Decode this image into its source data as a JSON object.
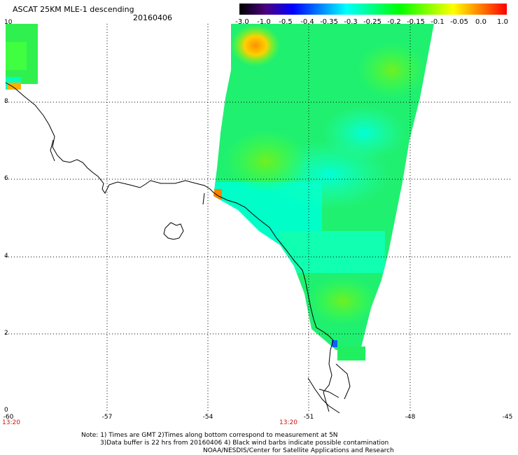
{
  "header": {
    "title": "ASCAT 25KM MLE-1 descending",
    "date": "20160406"
  },
  "colorbar": {
    "labels": [
      "-3.0",
      "-1.0",
      "-0.5",
      "-0.4",
      "-0.35",
      "-0.3",
      "-0.25",
      "-0.2",
      "-0.15",
      "-0.1",
      "-0.05",
      "0.0",
      "1.0"
    ],
    "colors": [
      "#000000",
      "#4b0082",
      "#0000ff",
      "#0080ff",
      "#00ffff",
      "#00ff80",
      "#00ff00",
      "#80ff00",
      "#ffff00",
      "#ff8000",
      "#ff0000"
    ]
  },
  "map": {
    "lat_labels": [
      "10",
      "8",
      "6",
      "4",
      "2",
      "0"
    ],
    "lon_labels": [
      "-60",
      "-57",
      "-54",
      "-51",
      "-48",
      "-45"
    ],
    "time_labels": [
      "13:20",
      "13:20"
    ]
  },
  "footer": {
    "note_line1": "Note: 1) Times are GMT 2)Times along bottom correspond to measurement at 5N",
    "note_line2": "3)Data buffer is 22 hrs from 20160406 4) Black wind barbs indicate possible contamination",
    "note_line3": "NOAA/NESDIS/Center for Satellite Applications and Research"
  }
}
